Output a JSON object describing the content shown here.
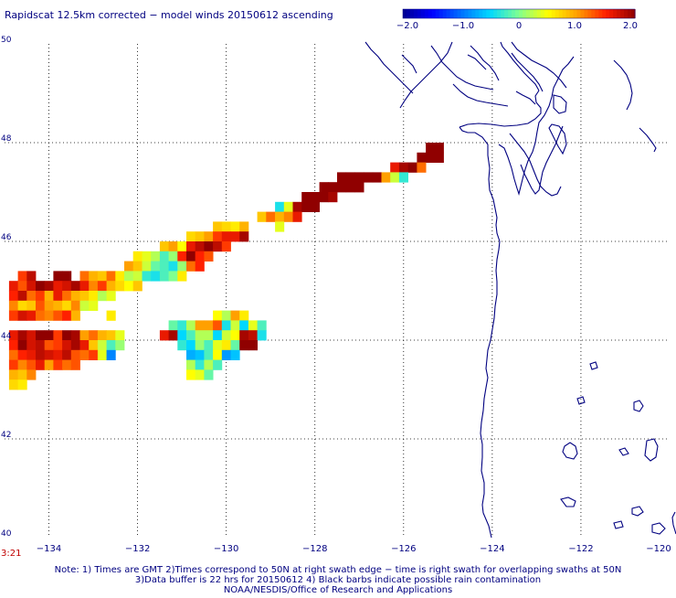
{
  "title": "Rapidscat 12.5km corrected − model winds 20150612 ascending",
  "colorbar": {
    "colors": [
      "#000090",
      "#0000ff",
      "#0070ff",
      "#00d8ff",
      "#80ff90",
      "#ffff00",
      "#ffa000",
      "#ff2000",
      "#900000"
    ],
    "labels": [
      "−2.0",
      "−1.0",
      "0",
      "1.0",
      "2.0"
    ],
    "range": [
      -2.0,
      2.0
    ]
  },
  "axes": {
    "lon_range": [
      -135,
      -120
    ],
    "lat_range": [
      40,
      50
    ],
    "x_ticks": [
      {
        "value": -134,
        "label": "−134"
      },
      {
        "value": -132,
        "label": "−132"
      },
      {
        "value": -130,
        "label": "−130"
      },
      {
        "value": -128,
        "label": "−128"
      },
      {
        "value": -126,
        "label": "−126"
      },
      {
        "value": -124,
        "label": "−124"
      },
      {
        "value": -122,
        "label": "−122"
      },
      {
        "value": -120,
        "label": "−120"
      }
    ],
    "y_ticks": [
      {
        "value": 50,
        "label": "50"
      },
      {
        "value": 48,
        "label": "48"
      },
      {
        "value": 46,
        "label": "46"
      },
      {
        "value": 44,
        "label": "44"
      },
      {
        "value": 42,
        "label": "42"
      },
      {
        "value": 40,
        "label": "40"
      }
    ],
    "grid": "dotted"
  },
  "time_label": "3:21",
  "notes": [
    "Note: 1) Times are GMT 2)Times correspond to 50N at right swath edge − time is right swath for overlapping swaths at 50N",
    "3)Data buffer is 22 hrs for 20150612 4) Black barbs indicate possible rain contamination",
    "NOAA/NESDIS/Office of Research and Applications"
  ],
  "coastline_color": "#000080",
  "chart_data": {
    "type": "heatmap",
    "title": "Rapidscat 12.5km corrected − model winds 20150612 ascending",
    "xlabel": "",
    "ylabel": "",
    "xlim": [
      -135,
      -120
    ],
    "ylim": [
      40,
      50
    ],
    "value_range": [
      -2.0,
      2.0
    ],
    "cell_size_deg": [
      0.2,
      0.2
    ],
    "cells": [
      [
        -125.4,
        47.9,
        2.0
      ],
      [
        -125.2,
        47.9,
        2.0
      ],
      [
        -125.6,
        47.7,
        2.0
      ],
      [
        -125.4,
        47.7,
        2.0
      ],
      [
        -125.2,
        47.7,
        2.0
      ],
      [
        -126.2,
        47.5,
        1.6
      ],
      [
        -126.0,
        47.5,
        1.9
      ],
      [
        -125.8,
        47.5,
        2.0
      ],
      [
        -125.6,
        47.5,
        1.2
      ],
      [
        -127.4,
        47.3,
        2.0
      ],
      [
        -127.2,
        47.3,
        2.0
      ],
      [
        -127.0,
        47.3,
        2.0
      ],
      [
        -126.8,
        47.3,
        2.0
      ],
      [
        -126.6,
        47.3,
        2.0
      ],
      [
        -126.4,
        47.3,
        1.0
      ],
      [
        -126.2,
        47.3,
        0.3
      ],
      [
        -126.0,
        47.3,
        -0.3
      ],
      [
        -127.8,
        47.1,
        2.0
      ],
      [
        -127.6,
        47.1,
        2.0
      ],
      [
        -127.4,
        47.1,
        2.0
      ],
      [
        -127.2,
        47.1,
        2.0
      ],
      [
        -127.0,
        47.1,
        2.0
      ],
      [
        -128.2,
        46.9,
        2.0
      ],
      [
        -128.0,
        46.9,
        2.0
      ],
      [
        -127.8,
        46.9,
        2.0
      ],
      [
        -127.6,
        46.9,
        1.9
      ],
      [
        -128.8,
        46.7,
        -0.4
      ],
      [
        -128.6,
        46.7,
        0.4
      ],
      [
        -128.4,
        46.7,
        1.9
      ],
      [
        -128.2,
        46.7,
        2.0
      ],
      [
        -128.0,
        46.7,
        2.0
      ],
      [
        -129.2,
        46.5,
        0.8
      ],
      [
        -129.0,
        46.5,
        1.2
      ],
      [
        -128.8,
        46.5,
        0.9
      ],
      [
        -128.6,
        46.5,
        1.1
      ],
      [
        -128.4,
        46.5,
        1.6
      ],
      [
        -130.2,
        46.3,
        0.8
      ],
      [
        -130.0,
        46.3,
        0.7
      ],
      [
        -129.8,
        46.3,
        0.6
      ],
      [
        -129.6,
        46.3,
        0.9
      ],
      [
        -128.8,
        46.3,
        0.4
      ],
      [
        -130.8,
        46.1,
        0.7
      ],
      [
        -130.6,
        46.1,
        0.8
      ],
      [
        -130.4,
        46.1,
        1.0
      ],
      [
        -130.2,
        46.1,
        1.4
      ],
      [
        -130.0,
        46.1,
        1.6
      ],
      [
        -129.8,
        46.1,
        1.6
      ],
      [
        -129.6,
        46.1,
        1.9
      ],
      [
        -131.4,
        45.9,
        0.8
      ],
      [
        -131.2,
        45.9,
        1.0
      ],
      [
        -131.0,
        45.9,
        0.5
      ],
      [
        -130.8,
        45.9,
        1.6
      ],
      [
        -130.6,
        45.9,
        1.8
      ],
      [
        -130.4,
        45.9,
        2.0
      ],
      [
        -130.2,
        45.9,
        1.8
      ],
      [
        -130.0,
        45.9,
        1.4
      ],
      [
        -132.0,
        45.7,
        0.6
      ],
      [
        -131.8,
        45.7,
        0.4
      ],
      [
        -131.6,
        45.7,
        0.2
      ],
      [
        -131.4,
        45.7,
        -0.2
      ],
      [
        -131.2,
        45.7,
        0.1
      ],
      [
        -131.0,
        45.7,
        1.5
      ],
      [
        -130.8,
        45.7,
        2.0
      ],
      [
        -130.6,
        45.7,
        1.5
      ],
      [
        -130.4,
        45.7,
        1.3
      ],
      [
        -132.2,
        45.5,
        1.0
      ],
      [
        -132.0,
        45.5,
        0.8
      ],
      [
        -131.8,
        45.5,
        0.3
      ],
      [
        -131.6,
        45.5,
        -0.1
      ],
      [
        -131.4,
        45.5,
        -0.2
      ],
      [
        -131.2,
        45.5,
        -0.4
      ],
      [
        -131.0,
        45.5,
        0.1
      ],
      [
        -130.8,
        45.5,
        1.2
      ],
      [
        -130.6,
        45.5,
        1.5
      ],
      [
        -134.6,
        45.3,
        1.4
      ],
      [
        -134.4,
        45.3,
        1.8
      ],
      [
        -133.8,
        45.3,
        2.0
      ],
      [
        -133.6,
        45.3,
        2.0
      ],
      [
        -133.2,
        45.3,
        1.2
      ],
      [
        -133.0,
        45.3,
        0.9
      ],
      [
        -132.8,
        45.3,
        0.8
      ],
      [
        -132.6,
        45.3,
        1.2
      ],
      [
        -132.4,
        45.3,
        0.6
      ],
      [
        -132.2,
        45.3,
        0.2
      ],
      [
        -132.0,
        45.3,
        0.3
      ],
      [
        -131.8,
        45.3,
        -0.3
      ],
      [
        -131.6,
        45.3,
        -0.4
      ],
      [
        -131.4,
        45.3,
        -0.2
      ],
      [
        -131.2,
        45.3,
        0.0
      ],
      [
        -131.0,
        45.3,
        0.6
      ],
      [
        -134.8,
        45.1,
        1.6
      ],
      [
        -134.6,
        45.1,
        1.3
      ],
      [
        -134.4,
        45.1,
        1.7
      ],
      [
        -134.2,
        45.1,
        2.0
      ],
      [
        -134.0,
        45.1,
        1.9
      ],
      [
        -133.8,
        45.1,
        1.6
      ],
      [
        -133.6,
        45.1,
        1.7
      ],
      [
        -133.4,
        45.1,
        1.9
      ],
      [
        -133.2,
        45.1,
        1.6
      ],
      [
        -133.0,
        45.1,
        1.1
      ],
      [
        -132.8,
        45.1,
        1.4
      ],
      [
        -132.6,
        45.1,
        0.9
      ],
      [
        -132.4,
        45.1,
        0.7
      ],
      [
        -132.2,
        45.1,
        0.5
      ],
      [
        -132.0,
        45.1,
        0.8
      ],
      [
        -134.8,
        44.9,
        1.5
      ],
      [
        -134.6,
        44.9,
        1.8
      ],
      [
        -134.4,
        44.9,
        1.2
      ],
      [
        -134.2,
        44.9,
        1.4
      ],
      [
        -134.0,
        44.9,
        0.9
      ],
      [
        -133.8,
        44.9,
        1.6
      ],
      [
        -133.6,
        44.9,
        1.2
      ],
      [
        -133.4,
        44.9,
        0.9
      ],
      [
        -133.2,
        44.9,
        0.8
      ],
      [
        -133.0,
        44.9,
        0.6
      ],
      [
        -132.8,
        44.9,
        0.2
      ],
      [
        -132.6,
        44.9,
        0.4
      ],
      [
        -134.8,
        44.7,
        1.1
      ],
      [
        -134.6,
        44.7,
        0.7
      ],
      [
        -134.4,
        44.7,
        0.8
      ],
      [
        -134.2,
        44.7,
        1.3
      ],
      [
        -134.0,
        44.7,
        1.0
      ],
      [
        -133.8,
        44.7,
        0.9
      ],
      [
        -133.6,
        44.7,
        0.7
      ],
      [
        -133.4,
        44.7,
        1.1
      ],
      [
        -133.2,
        44.7,
        0.3
      ],
      [
        -133.0,
        44.7,
        0.4
      ],
      [
        -134.8,
        44.5,
        1.4
      ],
      [
        -134.6,
        44.5,
        1.7
      ],
      [
        -134.4,
        44.5,
        1.6
      ],
      [
        -134.2,
        44.5,
        1.2
      ],
      [
        -134.0,
        44.5,
        1.1
      ],
      [
        -133.8,
        44.5,
        1.3
      ],
      [
        -133.6,
        44.5,
        1.5
      ],
      [
        -133.4,
        44.5,
        0.9
      ],
      [
        -132.6,
        44.5,
        0.6
      ],
      [
        -130.2,
        44.5,
        0.5
      ],
      [
        -130.0,
        44.5,
        0.2
      ],
      [
        -129.8,
        44.5,
        1.0
      ],
      [
        -129.6,
        44.5,
        0.6
      ],
      [
        -131.2,
        44.3,
        -0.1
      ],
      [
        -131.0,
        44.3,
        -0.3
      ],
      [
        -130.8,
        44.3,
        0.2
      ],
      [
        -130.6,
        44.3,
        1.0
      ],
      [
        -130.4,
        44.3,
        1.0
      ],
      [
        -130.2,
        44.3,
        1.3
      ],
      [
        -130.0,
        44.3,
        -0.4
      ],
      [
        -129.8,
        44.3,
        0.3
      ],
      [
        -129.6,
        44.3,
        -0.5
      ],
      [
        -129.4,
        44.3,
        0.4
      ],
      [
        -129.2,
        44.3,
        -0.2
      ],
      [
        -134.8,
        44.1,
        1.6
      ],
      [
        -134.6,
        44.1,
        1.9
      ],
      [
        -134.4,
        44.1,
        1.7
      ],
      [
        -134.2,
        44.1,
        2.0
      ],
      [
        -134.0,
        44.1,
        2.0
      ],
      [
        -133.8,
        44.1,
        1.4
      ],
      [
        -133.6,
        44.1,
        2.0
      ],
      [
        -133.4,
        44.1,
        1.9
      ],
      [
        -133.2,
        44.1,
        1.0
      ],
      [
        -133.0,
        44.1,
        1.2
      ],
      [
        -132.8,
        44.1,
        0.9
      ],
      [
        -132.6,
        44.1,
        0.8
      ],
      [
        -132.4,
        44.1,
        0.4
      ],
      [
        -131.4,
        44.1,
        1.6
      ],
      [
        -131.2,
        44.1,
        1.9
      ],
      [
        -131.0,
        44.1,
        -0.5
      ],
      [
        -130.8,
        44.1,
        -0.2
      ],
      [
        -130.6,
        44.1,
        0.2
      ],
      [
        -130.4,
        44.1,
        0.2
      ],
      [
        -130.2,
        44.1,
        -0.5
      ],
      [
        -130.0,
        44.1,
        0.3
      ],
      [
        -129.8,
        44.1,
        0.5
      ],
      [
        -129.6,
        44.1,
        1.9
      ],
      [
        -129.4,
        44.1,
        1.8
      ],
      [
        -129.2,
        44.1,
        -0.4
      ],
      [
        -134.8,
        43.9,
        1.5
      ],
      [
        -134.6,
        43.9,
        2.0
      ],
      [
        -134.4,
        43.9,
        1.7
      ],
      [
        -134.2,
        43.9,
        1.8
      ],
      [
        -134.0,
        43.9,
        1.3
      ],
      [
        -133.8,
        43.9,
        1.4
      ],
      [
        -133.6,
        43.9,
        1.7
      ],
      [
        -133.4,
        43.9,
        1.9
      ],
      [
        -133.2,
        43.9,
        1.6
      ],
      [
        -133.0,
        43.9,
        0.8
      ],
      [
        -132.8,
        43.9,
        0.3
      ],
      [
        -132.6,
        43.9,
        -0.2
      ],
      [
        -132.4,
        43.9,
        0.1
      ],
      [
        -131.0,
        43.9,
        -0.3
      ],
      [
        -130.8,
        43.9,
        -0.5
      ],
      [
        -130.6,
        43.9,
        0.1
      ],
      [
        -130.4,
        43.9,
        -0.2
      ],
      [
        -130.2,
        43.9,
        0.4
      ],
      [
        -130.0,
        43.9,
        0.6
      ],
      [
        -129.8,
        43.9,
        -0.1
      ],
      [
        -129.6,
        43.9,
        2.0
      ],
      [
        -129.4,
        43.9,
        2.0
      ],
      [
        -134.8,
        43.7,
        1.2
      ],
      [
        -134.6,
        43.7,
        1.5
      ],
      [
        -134.4,
        43.7,
        1.6
      ],
      [
        -134.2,
        43.7,
        1.8
      ],
      [
        -134.0,
        43.7,
        1.7
      ],
      [
        -133.8,
        43.7,
        1.6
      ],
      [
        -133.6,
        43.7,
        1.8
      ],
      [
        -133.4,
        43.7,
        1.3
      ],
      [
        -133.2,
        43.7,
        1.2
      ],
      [
        -133.0,
        43.7,
        1.4
      ],
      [
        -132.8,
        43.7,
        0.4
      ],
      [
        -132.6,
        43.7,
        -0.9
      ],
      [
        -130.8,
        43.7,
        -0.7
      ],
      [
        -130.6,
        43.7,
        -0.6
      ],
      [
        -130.4,
        43.7,
        -0.2
      ],
      [
        -130.2,
        43.7,
        0.5
      ],
      [
        -130.0,
        43.7,
        -0.8
      ],
      [
        -129.8,
        43.7,
        -0.6
      ],
      [
        -134.8,
        43.5,
        1.4
      ],
      [
        -134.6,
        43.5,
        1.1
      ],
      [
        -134.4,
        43.5,
        1.3
      ],
      [
        -134.2,
        43.5,
        1.6
      ],
      [
        -134.0,
        43.5,
        1.0
      ],
      [
        -133.8,
        43.5,
        1.4
      ],
      [
        -133.6,
        43.5,
        1.2
      ],
      [
        -133.4,
        43.5,
        1.3
      ],
      [
        -130.8,
        43.5,
        0.2
      ],
      [
        -130.6,
        43.5,
        -0.3
      ],
      [
        -130.4,
        43.5,
        0.2
      ],
      [
        -130.2,
        43.5,
        -0.2
      ],
      [
        -134.8,
        43.3,
        0.9
      ],
      [
        -134.6,
        43.3,
        0.8
      ],
      [
        -134.4,
        43.3,
        1.1
      ],
      [
        -130.8,
        43.3,
        0.5
      ],
      [
        -130.6,
        43.3,
        0.4
      ],
      [
        -130.4,
        43.3,
        -0.1
      ],
      [
        -134.8,
        43.1,
        0.7
      ],
      [
        -134.6,
        43.1,
        0.6
      ]
    ]
  }
}
